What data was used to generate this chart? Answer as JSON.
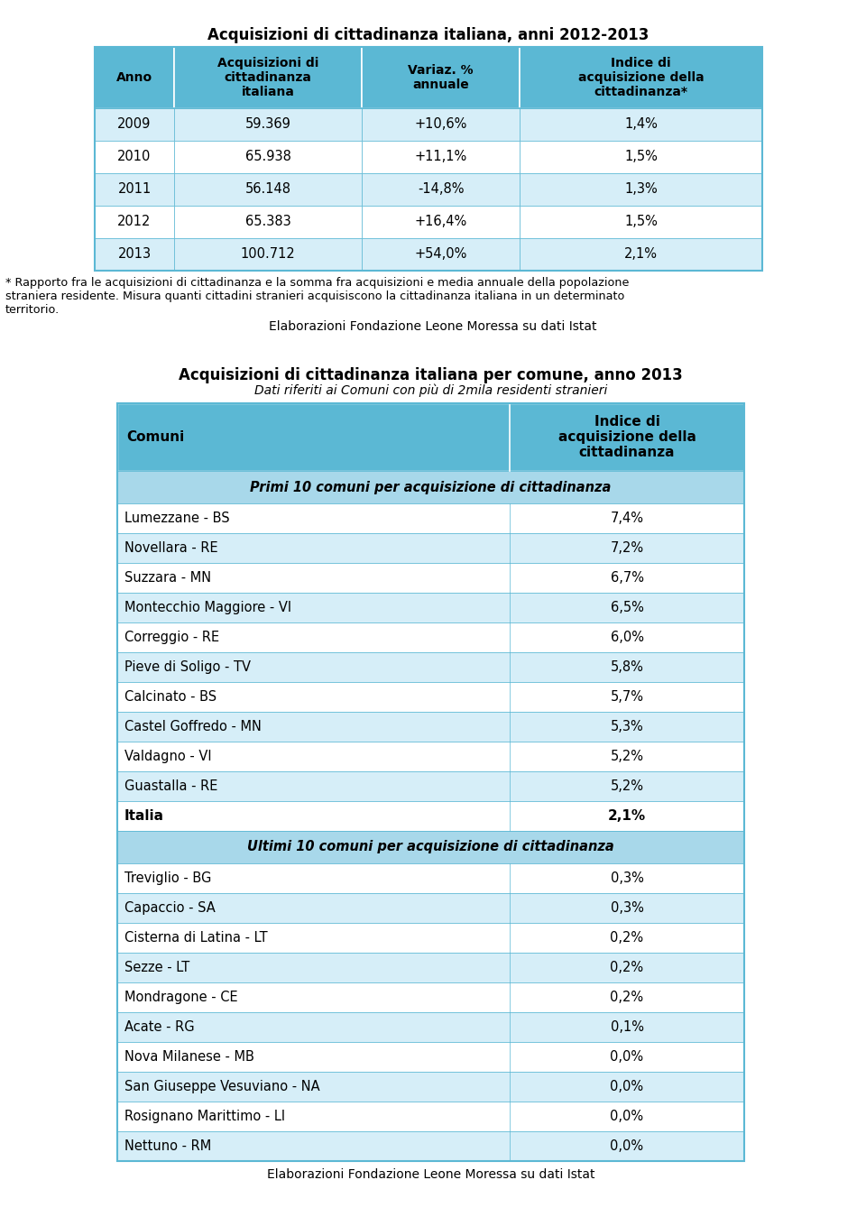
{
  "table1_title": "Acquisizioni di cittadinanza italiana, anni 2012-2013",
  "table1_headers": [
    "Anno",
    "Acquisizioni di\ncittadinanza\nitaliana",
    "Variaz. %\nannuale",
    "Indice di\nacquisizione della\ncittadinanza*"
  ],
  "table1_rows": [
    [
      "2009",
      "59.369",
      "+10,6%",
      "1,4%"
    ],
    [
      "2010",
      "65.938",
      "+11,1%",
      "1,5%"
    ],
    [
      "2011",
      "56.148",
      "-14,8%",
      "1,3%"
    ],
    [
      "2012",
      "65.383",
      "+16,4%",
      "1,5%"
    ],
    [
      "2013",
      "100.712",
      "+54,0%",
      "2,1%"
    ]
  ],
  "footnote1_line1": "* Rapporto fra le acquisizioni di cittadinanza e la somma fra acquisizioni e media annuale della popolazione",
  "footnote1_line2": "straniera residente. Misura quanti cittadini stranieri acquisiscono la cittadinanza italiana in un determinato",
  "footnote1_line3": "territorio.",
  "source1": "Elaborazioni Fondazione Leone Moressa su dati Istat",
  "table2_title": "Acquisizioni di cittadinanza italiana per comune, anno 2013",
  "table2_subtitle": "Dati riferiti ai Comuni con più di 2mila residenti stranieri",
  "table2_col1_header": "Comuni",
  "table2_col2_header": "Indice di\nacquisizione della\ncittadinanza",
  "section1_label": "Primi 10 comuni per acquisizione di cittadinanza",
  "top10": [
    [
      "Lumezzane - BS",
      "7,4%"
    ],
    [
      "Novellara - RE",
      "7,2%"
    ],
    [
      "Suzzara - MN",
      "6,7%"
    ],
    [
      "Montecchio Maggiore - VI",
      "6,5%"
    ],
    [
      "Correggio - RE",
      "6,0%"
    ],
    [
      "Pieve di Soligo - TV",
      "5,8%"
    ],
    [
      "Calcinato - BS",
      "5,7%"
    ],
    [
      "Castel Goffredo - MN",
      "5,3%"
    ],
    [
      "Valdagno - VI",
      "5,2%"
    ],
    [
      "Guastalla - RE",
      "5,2%"
    ]
  ],
  "italia_row": [
    "Italia",
    "2,1%"
  ],
  "section2_label": "Ultimi 10 comuni per acquisizione di cittadinanza",
  "bottom10": [
    [
      "Treviglio - BG",
      "0,3%"
    ],
    [
      "Capaccio - SA",
      "0,3%"
    ],
    [
      "Cisterna di Latina - LT",
      "0,2%"
    ],
    [
      "Sezze - LT",
      "0,2%"
    ],
    [
      "Mondragone - CE",
      "0,2%"
    ],
    [
      "Acate - RG",
      "0,1%"
    ],
    [
      "Nova Milanese - MB",
      "0,0%"
    ],
    [
      "San Giuseppe Vesuviano - NA",
      "0,0%"
    ],
    [
      "Rosignano Marittimo - LI",
      "0,0%"
    ],
    [
      "Nettuno - RM",
      "0,0%"
    ]
  ],
  "source2": "Elaborazioni Fondazione Leone Moressa su dati Istat",
  "header_bg": "#5BB8D4",
  "row_bg_light": "#D6EEF8",
  "row_bg_white": "#FFFFFF",
  "section_bg": "#A8D8EA",
  "border_color": "#5BB8D4",
  "col_divider": "#AACCDD"
}
